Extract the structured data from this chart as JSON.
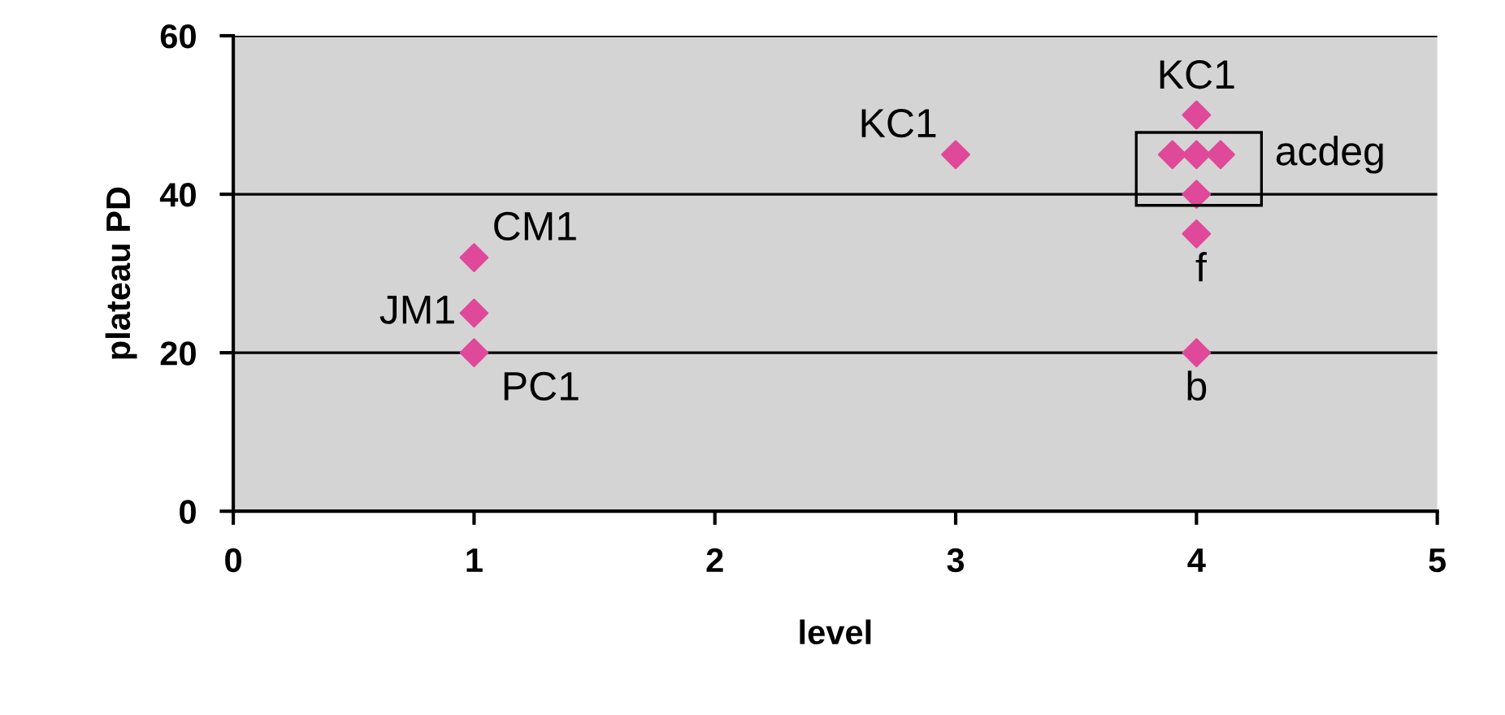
{
  "chart_data": {
    "type": "scatter",
    "xlabel": "level",
    "ylabel": "plateau PD",
    "x": [
      1,
      1,
      1,
      3,
      3.9,
      4,
      4.1,
      4,
      4,
      4,
      4
    ],
    "series": [
      {
        "color": "#e0489a",
        "values": [
          32,
          25,
          20,
          45,
          45,
          45,
          45,
          50,
          40,
          35,
          20
        ]
      }
    ],
    "xlim": [
      0,
      5
    ],
    "ylim": [
      0,
      60
    ],
    "xticks": [
      0,
      1,
      2,
      3,
      4,
      5
    ],
    "yticks": [
      0,
      20,
      40,
      60
    ],
    "grid": "y",
    "marker": "diamond",
    "annotations": [
      {
        "text": "CM1",
        "x": 1,
        "y": 32
      },
      {
        "text": "JM1",
        "x": 1,
        "y": 25
      },
      {
        "text": "PC1",
        "x": 1,
        "y": 20
      },
      {
        "text": "KC1",
        "x": 3,
        "y": 45
      },
      {
        "text": "KC1",
        "x": 4,
        "y": 50
      },
      {
        "text": "acdeg",
        "x": 4.1,
        "y": 45
      },
      {
        "text": "f",
        "x": 4,
        "y": 35
      },
      {
        "text": "b",
        "x": 4,
        "y": 20
      }
    ]
  }
}
